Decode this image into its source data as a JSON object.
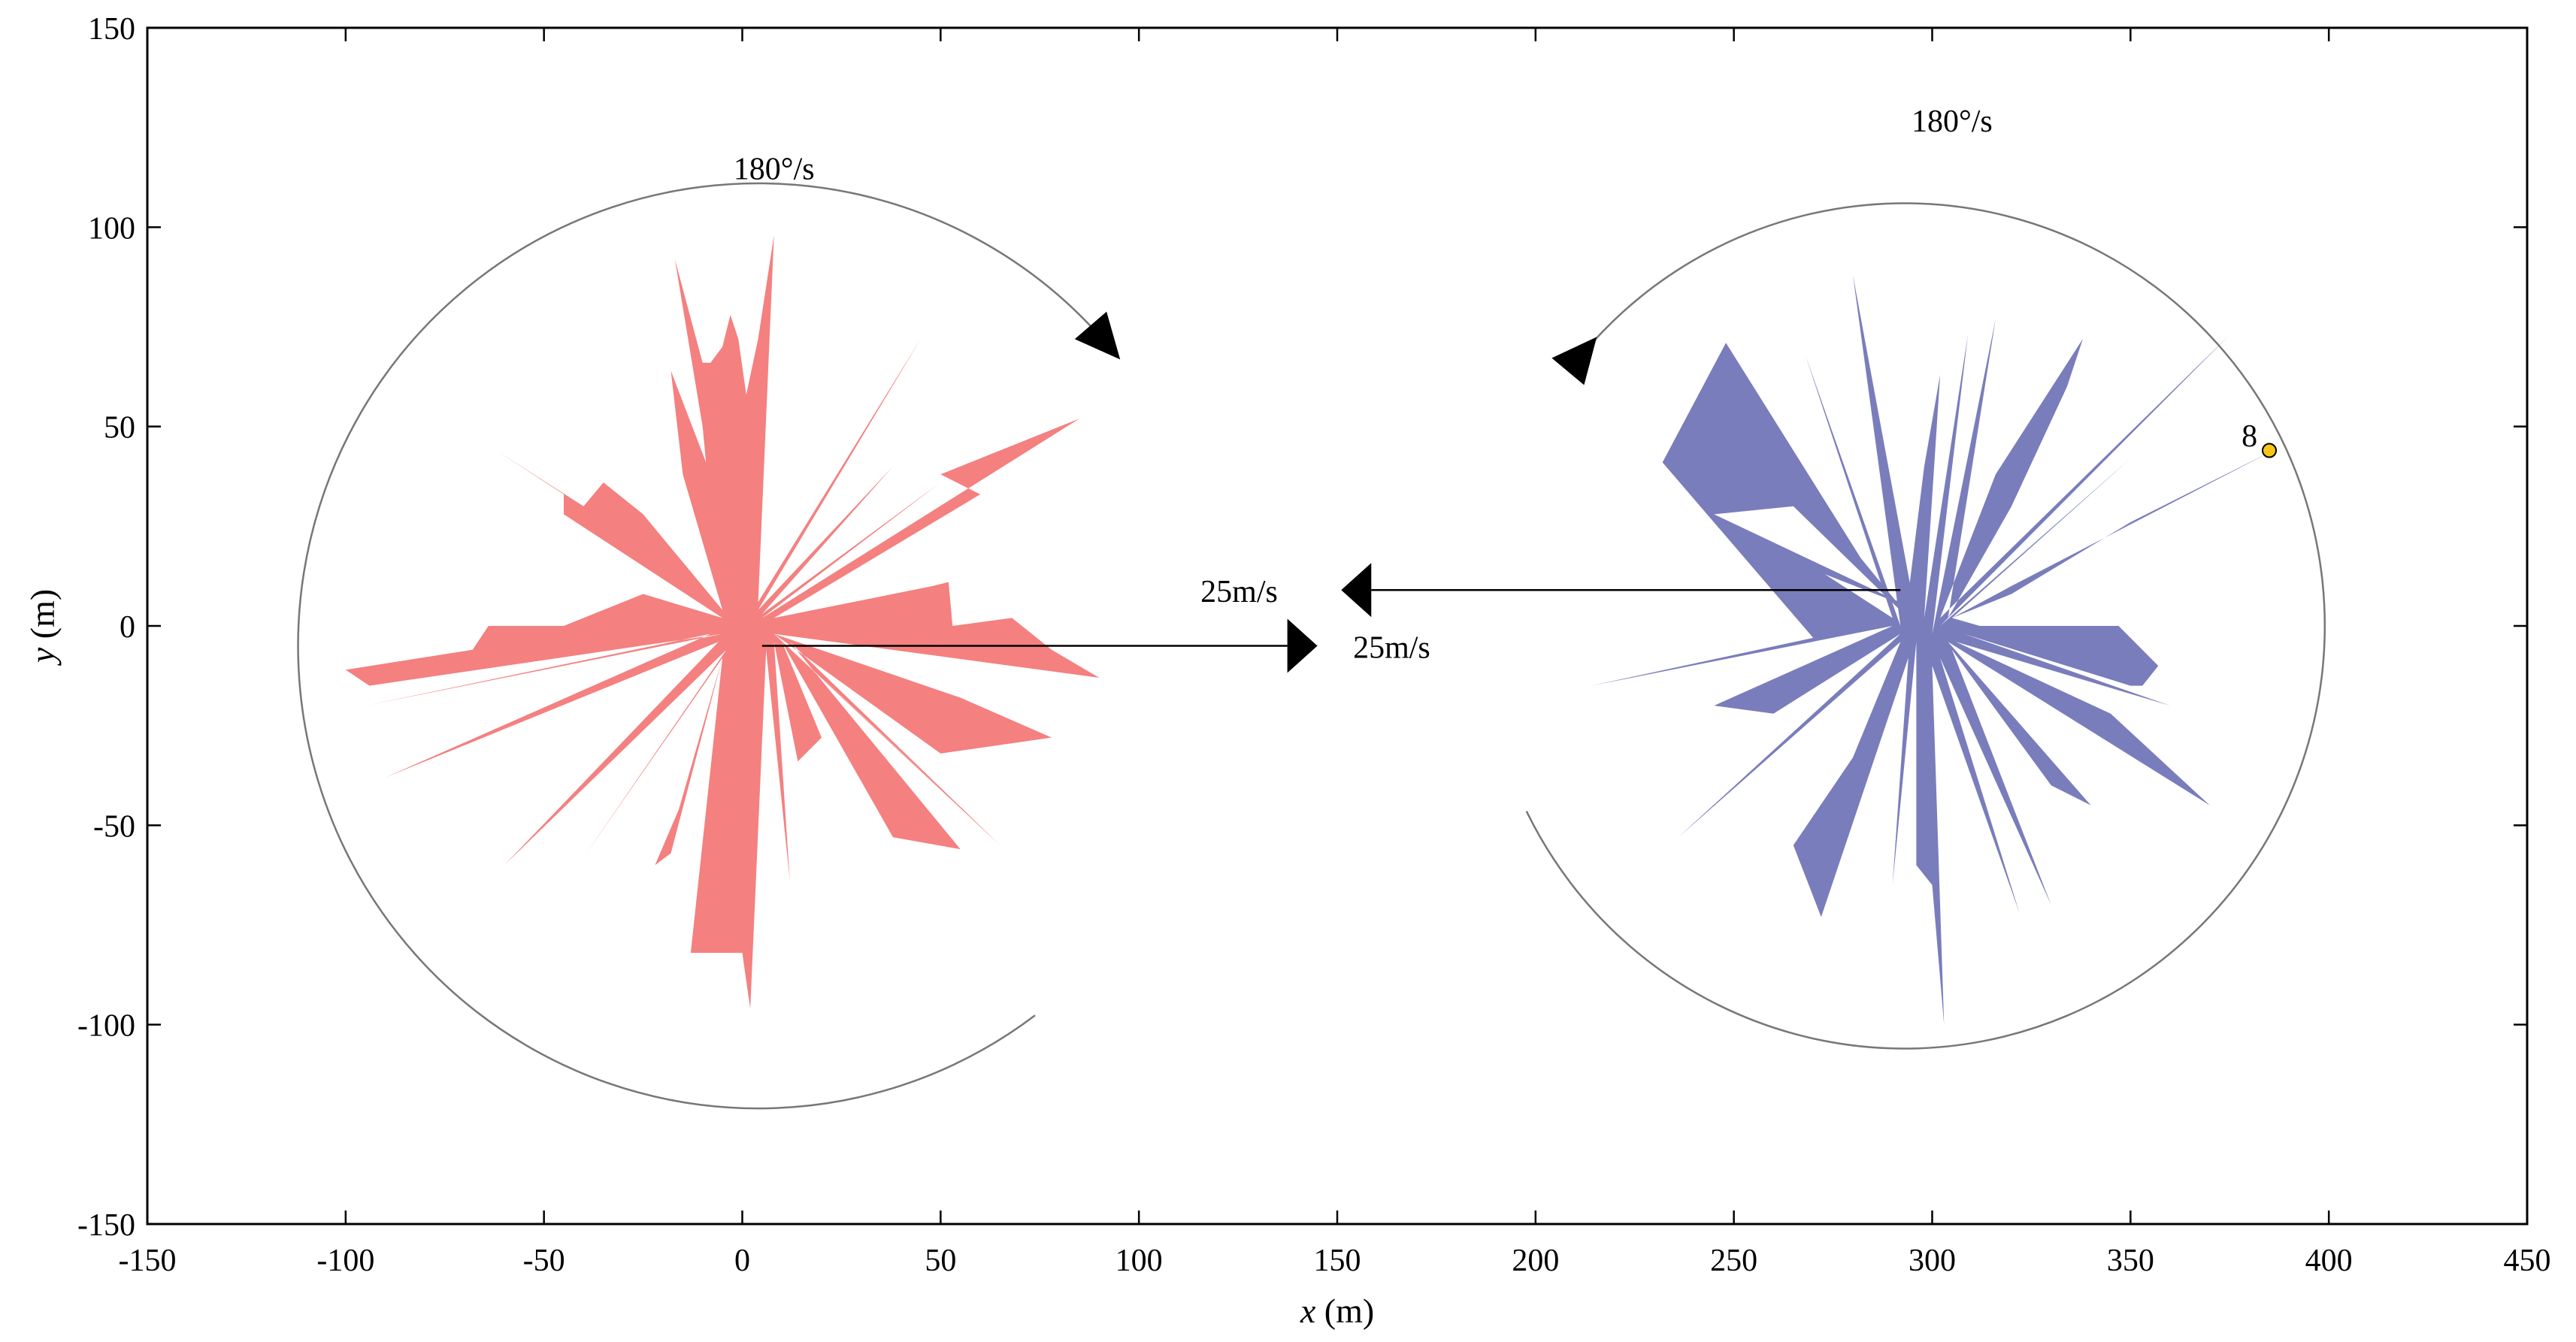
{
  "chart_data": {
    "type": "area",
    "xlabel_var": "x",
    "xlabel_unit": " (m)",
    "ylabel_var": "y",
    "ylabel_unit": " (m)",
    "xlim": [
      -150,
      450
    ],
    "ylim": [
      -150,
      150
    ],
    "xticks": [
      -150,
      -100,
      -50,
      0,
      50,
      100,
      150,
      200,
      250,
      300,
      350,
      400,
      450
    ],
    "yticks": [
      -150,
      -100,
      -50,
      0,
      50,
      100,
      150
    ],
    "grid": false,
    "colors": {
      "red_body": "#f48080",
      "blue_body": "#7a7dbb",
      "marker": "#f5c518",
      "arc": "#777777"
    },
    "bodies": [
      {
        "center": [
          0,
          0
        ],
        "color": "red",
        "points": [
          [
            -100,
            -11
          ],
          [
            -68,
            -6
          ],
          [
            -64,
            0
          ],
          [
            -45,
            0
          ],
          [
            -25,
            8
          ],
          [
            -5,
            2
          ],
          [
            -45,
            28
          ],
          [
            -45,
            33
          ],
          [
            -62,
            44
          ],
          [
            -40,
            30
          ],
          [
            -35,
            36
          ],
          [
            -25,
            28
          ],
          [
            -5,
            4
          ],
          [
            -15,
            38
          ],
          [
            -18,
            64
          ],
          [
            -8,
            38
          ],
          [
            -6,
            8
          ],
          [
            -10,
            50
          ],
          [
            -17,
            92
          ],
          [
            -10,
            66
          ],
          [
            -8,
            66
          ],
          [
            -5,
            70
          ],
          [
            -3,
            78
          ],
          [
            -1,
            72
          ],
          [
            1,
            58
          ],
          [
            4,
            72
          ],
          [
            8,
            98
          ],
          [
            4,
            6
          ],
          [
            45,
            72
          ],
          [
            4,
            4
          ],
          [
            38,
            40
          ],
          [
            5,
            3
          ],
          [
            50,
            36
          ],
          [
            5,
            2
          ],
          [
            85,
            52
          ],
          [
            50,
            38
          ],
          [
            60,
            33
          ],
          [
            8,
            2
          ],
          [
            48,
            10
          ],
          [
            52,
            11
          ],
          [
            53,
            0
          ],
          [
            68,
            2
          ],
          [
            78,
            -6
          ],
          [
            90,
            -13
          ],
          [
            8,
            -2
          ],
          [
            55,
            -18
          ],
          [
            78,
            -28
          ],
          [
            50,
            -32
          ],
          [
            8,
            -2
          ],
          [
            60,
            -50
          ],
          [
            10,
            -4
          ],
          [
            65,
            -55
          ],
          [
            12,
            -4
          ],
          [
            55,
            -56
          ],
          [
            38,
            -53
          ],
          [
            10,
            -4
          ],
          [
            20,
            -28
          ],
          [
            14,
            -34
          ],
          [
            8,
            -4
          ],
          [
            12,
            -64
          ],
          [
            6,
            -6
          ],
          [
            2,
            -96
          ],
          [
            0,
            -82
          ],
          [
            -10,
            -82
          ],
          [
            -13,
            -82
          ],
          [
            -5,
            -8
          ],
          [
            -18,
            -57
          ],
          [
            -22,
            -60
          ],
          [
            -16,
            -46
          ],
          [
            -5,
            -8
          ],
          [
            -40,
            -58
          ],
          [
            -4,
            -6
          ],
          [
            -60,
            -60
          ],
          [
            -6,
            -4
          ],
          [
            -90,
            -38
          ],
          [
            -8,
            -2
          ],
          [
            -95,
            -20
          ],
          [
            -5,
            -2
          ],
          [
            -94,
            -15
          ]
        ]
      },
      {
        "center": [
          300,
          0
        ],
        "color": "blue",
        "points": [
          [
            214,
            -15
          ],
          [
            270,
            -3
          ],
          [
            232,
            41
          ],
          [
            248,
            71
          ],
          [
            282,
            17
          ],
          [
            296,
            0
          ],
          [
            265,
            30
          ],
          [
            245,
            28
          ],
          [
            296,
            4
          ],
          [
            260,
            18
          ],
          [
            262,
            20
          ],
          [
            290,
            2
          ],
          [
            268,
            68
          ],
          [
            292,
            0
          ],
          [
            280,
            88
          ],
          [
            296,
            2
          ],
          [
            293,
            0
          ],
          [
            298,
            40
          ],
          [
            302,
            63
          ],
          [
            298,
            2
          ],
          [
            309,
            73
          ],
          [
            300,
            -2
          ],
          [
            316,
            77
          ],
          [
            304,
            2
          ],
          [
            320,
            30
          ],
          [
            334,
            60
          ],
          [
            338,
            72
          ],
          [
            316,
            38
          ],
          [
            302,
            2
          ],
          [
            375,
            73
          ],
          [
            302,
            0
          ],
          [
            350,
            42
          ],
          [
            305,
            2
          ],
          [
            320,
            8
          ],
          [
            350,
            26
          ],
          [
            358,
            30
          ],
          [
            386,
            44
          ],
          [
            320,
            10
          ],
          [
            305,
            2
          ],
          [
            312,
            0
          ],
          [
            330,
            0
          ],
          [
            347,
            0
          ],
          [
            357,
            -10
          ],
          [
            353,
            -15
          ],
          [
            350,
            -15
          ],
          [
            308,
            -2
          ],
          [
            360,
            -20
          ],
          [
            306,
            -4
          ],
          [
            345,
            -22
          ],
          [
            370,
            -45
          ],
          [
            304,
            -4
          ],
          [
            340,
            -45
          ],
          [
            330,
            -40
          ],
          [
            305,
            -6
          ],
          [
            330,
            -70
          ],
          [
            302,
            -8
          ],
          [
            322,
            -72
          ],
          [
            300,
            -10
          ],
          [
            303,
            -100
          ],
          [
            300,
            -65
          ],
          [
            296,
            -60
          ],
          [
            296,
            -4
          ],
          [
            290,
            -65
          ],
          [
            294,
            -8
          ],
          [
            272,
            -73
          ],
          [
            265,
            -55
          ],
          [
            280,
            -33
          ],
          [
            292,
            -4
          ],
          [
            236,
            -53
          ],
          [
            292,
            -2
          ],
          [
            260,
            -22
          ],
          [
            245,
            -20
          ],
          [
            290,
            0
          ]
        ]
      }
    ],
    "circles": [
      {
        "center": [
          4,
          -5
        ],
        "radius": 116,
        "gap_deg": [
          -53,
          41
        ],
        "arrow_at_deg": 41
      },
      {
        "center": [
          293,
          0
        ],
        "radius": 106,
        "gap_deg": [
          140,
          206
        ],
        "arrow_at_deg": 140
      }
    ],
    "arrows": [
      {
        "from": [
          5,
          -5
        ],
        "to": [
          145,
          -5
        ]
      },
      {
        "from": [
          292,
          9
        ],
        "to": [
          151,
          9
        ]
      }
    ],
    "annotations": [
      {
        "text": "180°/s",
        "x": 8,
        "y": 112,
        "anchor": "middle"
      },
      {
        "text": "180°/s",
        "x": 305,
        "y": 124,
        "anchor": "middle"
      },
      {
        "text": "25m/s",
        "x": 135,
        "y": 6,
        "anchor": "end"
      },
      {
        "text": "25m/s",
        "x": 154,
        "y": -8,
        "anchor": "start"
      },
      {
        "text": "8",
        "x": 382,
        "y": 45,
        "anchor": "end"
      }
    ],
    "markers": [
      {
        "x": 385,
        "y": 44
      }
    ]
  }
}
